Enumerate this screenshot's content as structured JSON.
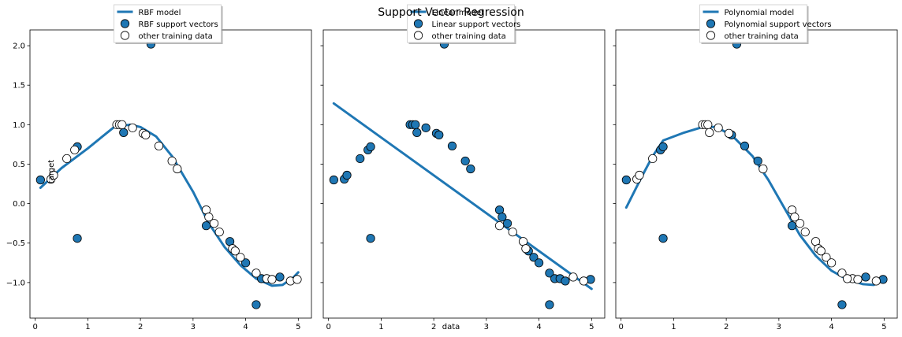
{
  "figure": {
    "suptitle": "Support Vector Regression",
    "xlabel": "data",
    "ylabel": "target"
  },
  "chart_data": [
    {
      "type": "scatter",
      "model_label": "RBF model",
      "sv_label": "RBF support vectors",
      "other_label": "other training data",
      "xlim": [
        -0.1,
        5.25
      ],
      "ylim": [
        -1.45,
        2.2
      ],
      "xticks": [
        "0",
        "1",
        "2",
        "3",
        "4",
        "5"
      ],
      "yticks": [
        "−1.0",
        "−0.5",
        "0.0",
        "0.5",
        "1.0",
        "1.5",
        "2.0"
      ],
      "model_line": [
        [
          0.1,
          0.2
        ],
        [
          0.5,
          0.45
        ],
        [
          1.0,
          0.7
        ],
        [
          1.5,
          0.97
        ],
        [
          1.8,
          1.0
        ],
        [
          2.0,
          0.97
        ],
        [
          2.3,
          0.85
        ],
        [
          2.6,
          0.6
        ],
        [
          3.0,
          0.15
        ],
        [
          3.3,
          -0.25
        ],
        [
          3.6,
          -0.55
        ],
        [
          3.9,
          -0.78
        ],
        [
          4.2,
          -0.95
        ],
        [
          4.5,
          -1.04
        ],
        [
          4.7,
          -1.03
        ],
        [
          4.9,
          -0.94
        ],
        [
          5.0,
          -0.87
        ]
      ],
      "support_vectors": [
        [
          0.1,
          0.3
        ],
        [
          0.8,
          -0.44
        ],
        [
          0.8,
          0.72
        ],
        [
          1.68,
          0.9
        ],
        [
          2.2,
          2.02
        ],
        [
          3.25,
          -0.28
        ],
        [
          3.7,
          -0.48
        ],
        [
          4.0,
          -0.75
        ],
        [
          4.2,
          -1.28
        ],
        [
          4.65,
          -0.93
        ],
        [
          4.3,
          -0.95
        ]
      ],
      "other_data": [
        [
          0.3,
          0.31
        ],
        [
          0.35,
          0.36
        ],
        [
          0.6,
          0.57
        ],
        [
          0.75,
          0.68
        ],
        [
          1.55,
          1.0
        ],
        [
          1.6,
          1.0
        ],
        [
          1.65,
          1.0
        ],
        [
          1.85,
          0.96
        ],
        [
          2.05,
          0.89
        ],
        [
          2.1,
          0.87
        ],
        [
          2.35,
          0.73
        ],
        [
          2.6,
          0.54
        ],
        [
          2.7,
          0.44
        ],
        [
          3.25,
          -0.08
        ],
        [
          3.3,
          -0.17
        ],
        [
          3.4,
          -0.25
        ],
        [
          3.5,
          -0.36
        ],
        [
          3.75,
          -0.57
        ],
        [
          3.8,
          -0.6
        ],
        [
          3.9,
          -0.68
        ],
        [
          4.2,
          -0.88
        ],
        [
          4.4,
          -0.95
        ],
        [
          4.5,
          -0.96
        ],
        [
          4.85,
          -0.98
        ],
        [
          4.98,
          -0.96
        ]
      ]
    },
    {
      "type": "scatter",
      "model_label": "Linear model",
      "sv_label": "Linear support vectors",
      "other_label": "other training data",
      "xlim": [
        -0.1,
        5.25
      ],
      "ylim": [
        -1.45,
        2.2
      ],
      "xticks": [
        "0",
        "1",
        "2",
        "3",
        "4",
        "5"
      ],
      "yticks": [],
      "model_line": [
        [
          0.1,
          1.27
        ],
        [
          5.0,
          -1.08
        ]
      ],
      "support_vectors": [
        [
          0.1,
          0.3
        ],
        [
          0.3,
          0.31
        ],
        [
          0.35,
          0.36
        ],
        [
          0.6,
          0.57
        ],
        [
          0.75,
          0.68
        ],
        [
          0.8,
          0.72
        ],
        [
          0.8,
          -0.44
        ],
        [
          1.55,
          1.0
        ],
        [
          1.6,
          1.0
        ],
        [
          1.65,
          1.0
        ],
        [
          1.68,
          0.9
        ],
        [
          1.85,
          0.96
        ],
        [
          2.05,
          0.89
        ],
        [
          2.1,
          0.87
        ],
        [
          2.2,
          2.02
        ],
        [
          2.35,
          0.73
        ],
        [
          2.6,
          0.54
        ],
        [
          2.7,
          0.44
        ],
        [
          3.25,
          -0.08
        ],
        [
          3.3,
          -0.17
        ],
        [
          3.4,
          -0.25
        ],
        [
          3.8,
          -0.6
        ],
        [
          3.9,
          -0.68
        ],
        [
          4.0,
          -0.75
        ],
        [
          4.2,
          -0.88
        ],
        [
          4.2,
          -1.28
        ],
        [
          4.3,
          -0.95
        ],
        [
          4.4,
          -0.95
        ],
        [
          4.5,
          -0.98
        ],
        [
          4.98,
          -0.96
        ]
      ],
      "other_data": [
        [
          3.25,
          -0.28
        ],
        [
          3.5,
          -0.36
        ],
        [
          3.7,
          -0.48
        ],
        [
          3.75,
          -0.57
        ],
        [
          4.65,
          -0.93
        ],
        [
          4.85,
          -0.98
        ]
      ]
    },
    {
      "type": "scatter",
      "model_label": "Polynomial model",
      "sv_label": "Polynomial support vectors",
      "other_label": "other training data",
      "xlim": [
        -0.1,
        5.25
      ],
      "ylim": [
        -1.45,
        2.2
      ],
      "xticks": [
        "0",
        "1",
        "2",
        "3",
        "4",
        "5"
      ],
      "yticks": [],
      "model_line": [
        [
          0.1,
          -0.05
        ],
        [
          0.4,
          0.35
        ],
        [
          0.6,
          0.6
        ],
        [
          0.8,
          0.8
        ],
        [
          1.2,
          0.9
        ],
        [
          1.55,
          0.97
        ],
        [
          1.8,
          0.97
        ],
        [
          2.1,
          0.87
        ],
        [
          2.5,
          0.6
        ],
        [
          2.8,
          0.3
        ],
        [
          3.1,
          -0.05
        ],
        [
          3.4,
          -0.4
        ],
        [
          3.7,
          -0.66
        ],
        [
          4.0,
          -0.85
        ],
        [
          4.3,
          -0.96
        ],
        [
          4.6,
          -1.02
        ],
        [
          4.8,
          -1.03
        ],
        [
          5.0,
          -0.97
        ]
      ],
      "support_vectors": [
        [
          0.1,
          0.3
        ],
        [
          0.8,
          -0.44
        ],
        [
          0.75,
          0.68
        ],
        [
          0.8,
          0.72
        ],
        [
          2.1,
          0.87
        ],
        [
          2.2,
          2.02
        ],
        [
          2.35,
          0.73
        ],
        [
          2.6,
          0.54
        ],
        [
          3.25,
          -0.28
        ],
        [
          4.2,
          -1.28
        ],
        [
          4.65,
          -0.93
        ],
        [
          4.98,
          -0.96
        ]
      ],
      "other_data": [
        [
          0.3,
          0.31
        ],
        [
          0.35,
          0.36
        ],
        [
          0.6,
          0.57
        ],
        [
          1.55,
          1.0
        ],
        [
          1.6,
          1.0
        ],
        [
          1.65,
          1.0
        ],
        [
          1.68,
          0.9
        ],
        [
          1.85,
          0.96
        ],
        [
          2.05,
          0.89
        ],
        [
          2.7,
          0.44
        ],
        [
          3.25,
          -0.08
        ],
        [
          3.3,
          -0.17
        ],
        [
          3.4,
          -0.25
        ],
        [
          3.5,
          -0.36
        ],
        [
          3.7,
          -0.48
        ],
        [
          3.75,
          -0.57
        ],
        [
          3.8,
          -0.6
        ],
        [
          3.9,
          -0.68
        ],
        [
          4.0,
          -0.75
        ],
        [
          4.2,
          -0.88
        ],
        [
          4.4,
          -0.95
        ],
        [
          4.5,
          -0.96
        ],
        [
          4.85,
          -0.98
        ],
        [
          4.3,
          -0.95
        ]
      ]
    }
  ],
  "colors": {
    "model_line": "#1f77b4",
    "support_vector_fill": "#1f77b4",
    "other_fill": "#ffffff",
    "marker_edge": "#000000"
  }
}
